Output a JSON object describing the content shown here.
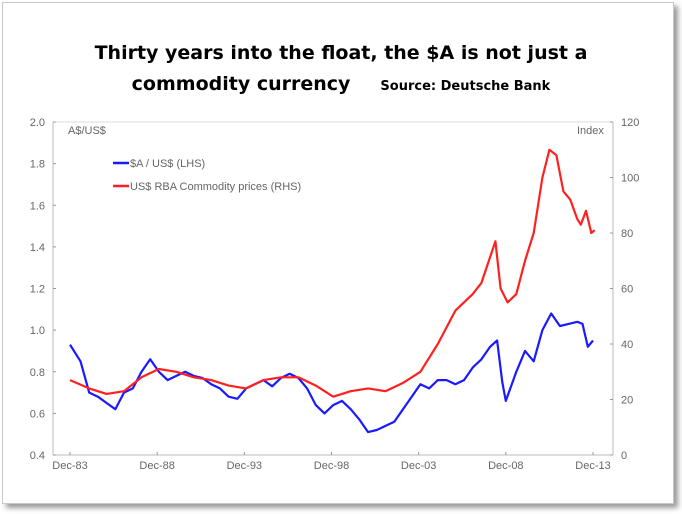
{
  "title_line1": "Thirty years into the float, the $A is not just  a",
  "title_line2": "commodity currency",
  "source": "Source: Deutsche Bank",
  "chart_data": {
    "type": "line",
    "title": "Thirty years into the float, the $A is not just a commodity currency",
    "left_axis_label": "A$/US$",
    "right_axis_label": "Index",
    "left_ylim": [
      0.4,
      2.0
    ],
    "right_ylim": [
      0,
      120
    ],
    "left_ticks": [
      "0.4",
      "0.6",
      "0.8",
      "1.0",
      "1.2",
      "1.4",
      "1.6",
      "1.8",
      "2.0"
    ],
    "right_ticks": [
      "0",
      "20",
      "40",
      "60",
      "80",
      "100",
      "120"
    ],
    "x_ticks": [
      "Dec-83",
      "Dec-88",
      "Dec-93",
      "Dec-98",
      "Dec-03",
      "Dec-08",
      "Dec-13"
    ],
    "xlim": [
      1983.9,
      2014.3
    ],
    "legend_placement": "top-left",
    "series": [
      {
        "name": "$A / US$ (LHS)",
        "axis": "left",
        "color": "#1a1aff",
        "x": [
          1983.9,
          1984.5,
          1985,
          1985.5,
          1986,
          1986.5,
          1987,
          1987.5,
          1988,
          1988.5,
          1989,
          1989.5,
          1990,
          1990.5,
          1991,
          1991.5,
          1992,
          1992.5,
          1993,
          1993.5,
          1994,
          1994.5,
          1995,
          1995.5,
          1996,
          1996.5,
          1997,
          1997.5,
          1998,
          1998.5,
          1999,
          1999.5,
          2000,
          2000.5,
          2001,
          2001.5,
          2002,
          2002.5,
          2003,
          2003.5,
          2004,
          2004.5,
          2005,
          2005.5,
          2006,
          2006.5,
          2007,
          2007.5,
          2008,
          2008.4,
          2008.7,
          2008.9,
          2009.5,
          2010,
          2010.5,
          2011,
          2011.5,
          2012,
          2012.5,
          2013,
          2013.3,
          2013.6,
          2013.9
        ],
        "values": [
          0.93,
          0.85,
          0.7,
          0.68,
          0.65,
          0.62,
          0.7,
          0.72,
          0.8,
          0.86,
          0.8,
          0.76,
          0.78,
          0.8,
          0.78,
          0.77,
          0.74,
          0.72,
          0.68,
          0.67,
          0.72,
          0.74,
          0.76,
          0.73,
          0.77,
          0.79,
          0.77,
          0.72,
          0.64,
          0.6,
          0.64,
          0.66,
          0.62,
          0.57,
          0.51,
          0.52,
          0.54,
          0.56,
          0.62,
          0.68,
          0.74,
          0.72,
          0.76,
          0.76,
          0.74,
          0.76,
          0.82,
          0.86,
          0.92,
          0.95,
          0.75,
          0.66,
          0.8,
          0.9,
          0.85,
          1.0,
          1.08,
          1.02,
          1.03,
          1.04,
          1.03,
          0.92,
          0.95
        ]
      },
      {
        "name": "US$ RBA Commodity prices (RHS)",
        "axis": "right",
        "color": "#ff2020",
        "x": [
          1983.9,
          1985,
          1986,
          1987,
          1988,
          1989,
          1990,
          1991,
          1992,
          1993,
          1994,
          1995,
          1996,
          1997,
          1998,
          1999,
          2000,
          2001,
          2002,
          2003,
          2004,
          2005,
          2006,
          2007,
          2007.5,
          2008.3,
          2008.6,
          2009,
          2009.5,
          2010,
          2010.5,
          2011,
          2011.4,
          2011.8,
          2012.2,
          2012.6,
          2013,
          2013.2,
          2013.5,
          2013.8,
          2014
        ],
        "values": [
          27,
          24,
          22,
          23,
          28,
          31,
          30,
          28,
          27,
          25,
          24,
          27,
          28,
          28,
          25,
          21,
          23,
          24,
          23,
          26,
          30,
          40,
          52,
          58,
          62,
          77,
          60,
          55,
          58,
          70,
          80,
          100,
          110,
          108,
          95,
          92,
          85,
          83,
          88,
          80,
          81
        ]
      }
    ]
  }
}
